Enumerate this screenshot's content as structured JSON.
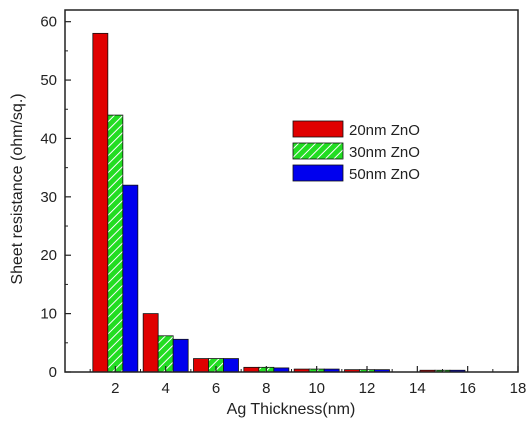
{
  "chart_data": {
    "type": "bar",
    "title": "",
    "xlabel": "Ag Thickness(nm)",
    "ylabel": "Sheet resistance (ohm/sq.)",
    "xlim": [
      0,
      18
    ],
    "ylim": [
      0,
      62
    ],
    "xticks": [
      2,
      4,
      6,
      8,
      10,
      12,
      14,
      16,
      18
    ],
    "yticks": [
      0,
      10,
      20,
      30,
      40,
      50,
      60
    ],
    "x": [
      2,
      4,
      6,
      8,
      10,
      12,
      15
    ],
    "grid": false,
    "legend_position": "right-middle",
    "series": [
      {
        "name": "20nm ZnO",
        "color": "#e00000",
        "pattern": "solid",
        "values": [
          58,
          10,
          2.3,
          0.8,
          0.5,
          0.4,
          0.3
        ]
      },
      {
        "name": "30nm ZnO",
        "color": "#22dd22",
        "pattern": "hatch",
        "values": [
          44,
          6.2,
          2.3,
          0.8,
          0.5,
          0.4,
          0.3
        ]
      },
      {
        "name": "50nm ZnO",
        "color": "#0000ee",
        "pattern": "solid",
        "values": [
          32,
          5.6,
          2.3,
          0.7,
          0.5,
          0.4,
          0.3
        ]
      }
    ]
  }
}
